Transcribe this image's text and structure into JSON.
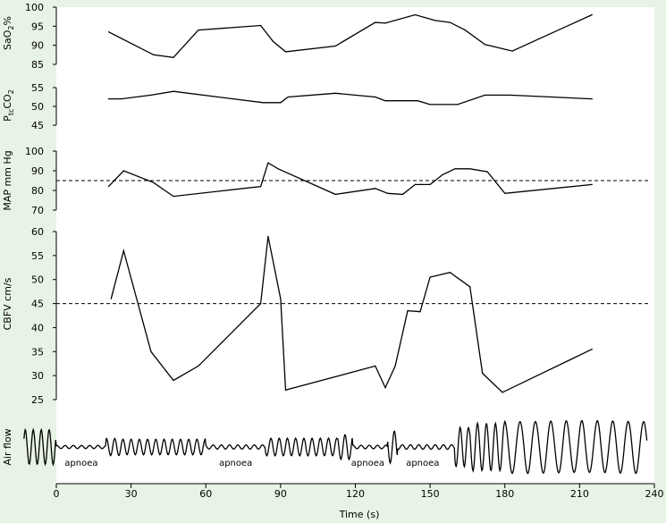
{
  "background": "#e7f3e4",
  "plot_background": "#ffffff",
  "line_color": "#000000",
  "chart_data": [
    {
      "type": "line",
      "ylabel": "SaO2%",
      "ylim": [
        85,
        100
      ],
      "yticks": [
        85,
        90,
        95,
        100
      ],
      "series": [
        {
          "x": [
            21,
            39,
            47,
            57,
            82,
            87,
            92,
            112,
            128,
            132,
            144,
            152,
            158,
            164,
            172,
            183,
            215
          ],
          "values": [
            93.5,
            87.5,
            86.8,
            94,
            95.2,
            91,
            88.3,
            89.8,
            96,
            95.8,
            98,
            96.5,
            96,
            94,
            90.2,
            88.5,
            98
          ]
        }
      ]
    },
    {
      "type": "line",
      "ylabel": "PtcCO2",
      "ylim": [
        45,
        55
      ],
      "yticks": [
        45,
        50,
        55
      ],
      "series": [
        {
          "x": [
            21,
            26,
            38,
            47,
            83,
            90,
            93,
            112,
            128,
            132,
            145,
            150,
            161,
            172,
            182,
            215
          ],
          "values": [
            52,
            52,
            53,
            54,
            51,
            51,
            52.5,
            53.5,
            52.5,
            51.5,
            51.5,
            50.5,
            50.5,
            53,
            53,
            52
          ]
        }
      ]
    },
    {
      "type": "line",
      "ylabel": "MAP mm Hg",
      "ylim": [
        70,
        100
      ],
      "yticks": [
        70,
        80,
        90,
        100
      ],
      "reference_line": 85,
      "series": [
        {
          "x": [
            21,
            27,
            39,
            47,
            82,
            85,
            89,
            112,
            128,
            133,
            139,
            144,
            150,
            155,
            160,
            166,
            173,
            180,
            215
          ],
          "values": [
            82,
            90,
            84,
            77,
            82,
            94,
            91,
            78,
            81,
            78.5,
            78,
            83,
            83,
            88,
            91,
            91,
            89.5,
            78.5,
            83
          ]
        }
      ]
    },
    {
      "type": "line",
      "ylabel": "CBFV cm/s",
      "ylim": [
        25,
        60
      ],
      "yticks": [
        25,
        30,
        35,
        40,
        45,
        50,
        55,
        60
      ],
      "reference_line": 45,
      "series": [
        {
          "x": [
            22,
            27,
            38,
            47,
            57,
            82,
            85,
            90,
            92,
            128,
            132,
            136,
            141,
            146,
            150,
            158,
            166,
            171,
            179,
            215
          ],
          "values": [
            46,
            56,
            35,
            29,
            32,
            45,
            59,
            46,
            27,
            32,
            27.5,
            32,
            43.5,
            43.3,
            50.5,
            51.5,
            48.5,
            30.5,
            26.5,
            35.5
          ]
        }
      ]
    },
    {
      "type": "line",
      "ylabel": "Air flow",
      "annotations": [
        {
          "label": "apnoea",
          "x": 10
        },
        {
          "label": "apnoea",
          "x": 72
        },
        {
          "label": "apnoea",
          "x": 125
        },
        {
          "label": "apnoea",
          "x": 147
        }
      ]
    }
  ],
  "x_axis": {
    "label": "Time (s)",
    "range": [
      0,
      240
    ],
    "ticks": [
      0,
      30,
      60,
      90,
      120,
      150,
      180,
      210,
      240
    ]
  }
}
